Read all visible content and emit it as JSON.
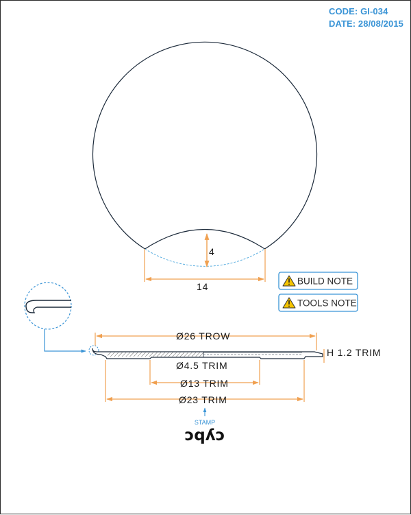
{
  "header": {
    "code": "CODE: GI-034",
    "date": "DATE: 28/08/2015"
  },
  "dimensions": {
    "cap_height": "4",
    "cap_width": "14",
    "outer_diameter": "Ø26 TROW",
    "height": "H 1.2 TRIM",
    "inner_diameter_small": "Ø4.5 TRIM",
    "inner_diameter_mid": "Ø13 TRIM",
    "inner_diameter_large": "Ø23 TRIM"
  },
  "notes": {
    "build_note": "BUILD NOTE",
    "tools_note": "TOOLS NOTE"
  },
  "stamp": {
    "label": "STAMP",
    "text": "ɔqʎɔ"
  },
  "colors": {
    "dimension": "#f0a050",
    "detail": "#3a94d6",
    "outline": "#1c2a3a",
    "warning": "#f5c400"
  },
  "icons": {
    "note": "warning-triangle-icon"
  }
}
